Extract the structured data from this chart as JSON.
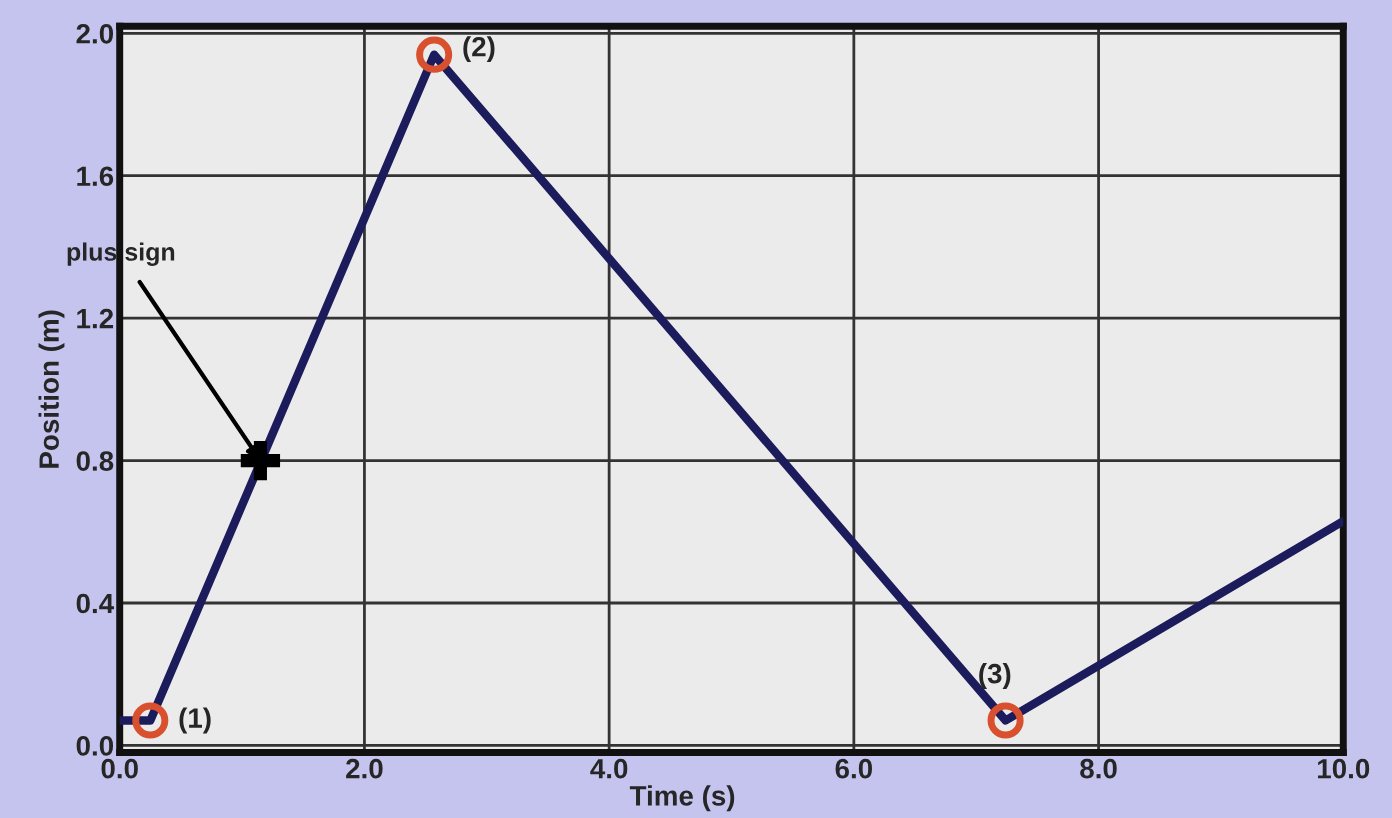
{
  "chart_data": {
    "type": "line",
    "xlabel": "Time (s)",
    "ylabel": "Position (m)",
    "xlim": [
      0,
      10
    ],
    "ylim": [
      -0.02,
      2.02
    ],
    "xticks": [
      {
        "value": 0,
        "label": "0.0"
      },
      {
        "value": 2,
        "label": "2.0"
      },
      {
        "value": 4,
        "label": "4.0"
      },
      {
        "value": 6,
        "label": "6.0"
      },
      {
        "value": 8,
        "label": "8.0"
      },
      {
        "value": 10,
        "label": "10.0"
      }
    ],
    "yticks": [
      {
        "value": 0,
        "label": "0.0"
      },
      {
        "value": 0.4,
        "label": "0.4"
      },
      {
        "value": 0.8,
        "label": "0.8"
      },
      {
        "value": 1.2,
        "label": "1.2"
      },
      {
        "value": 1.6,
        "label": "1.6"
      },
      {
        "value": 2.0,
        "label": "2.0"
      }
    ],
    "grid": true,
    "series": [
      {
        "color": "#1c1c5c",
        "x": [
          0,
          0.25,
          2.57,
          7.24,
          10
        ],
        "values": [
          0.07,
          0.07,
          1.94,
          0.07,
          0.63
        ],
        "marker": "none",
        "line_style": "solid"
      },
      {
        "type": "scatter",
        "color": "#d9502e",
        "x": [
          0.25,
          2.57,
          7.24
        ],
        "values": [
          0.07,
          1.94,
          0.07
        ],
        "marker": "circle"
      },
      {
        "type": "scatter",
        "color": "#000000",
        "x": [
          1.15
        ],
        "values": [
          0.8
        ],
        "marker": "cross"
      }
    ],
    "annotations": [
      {
        "text": "(1)",
        "x": 0.25,
        "y": 0.07
      },
      {
        "text": "(2)",
        "x": 2.57,
        "y": 1.94
      },
      {
        "text": "(3)",
        "x": 7.24,
        "y": 0.07
      },
      {
        "text": "plus sign",
        "x": 1.15,
        "y": 0.8
      }
    ]
  }
}
